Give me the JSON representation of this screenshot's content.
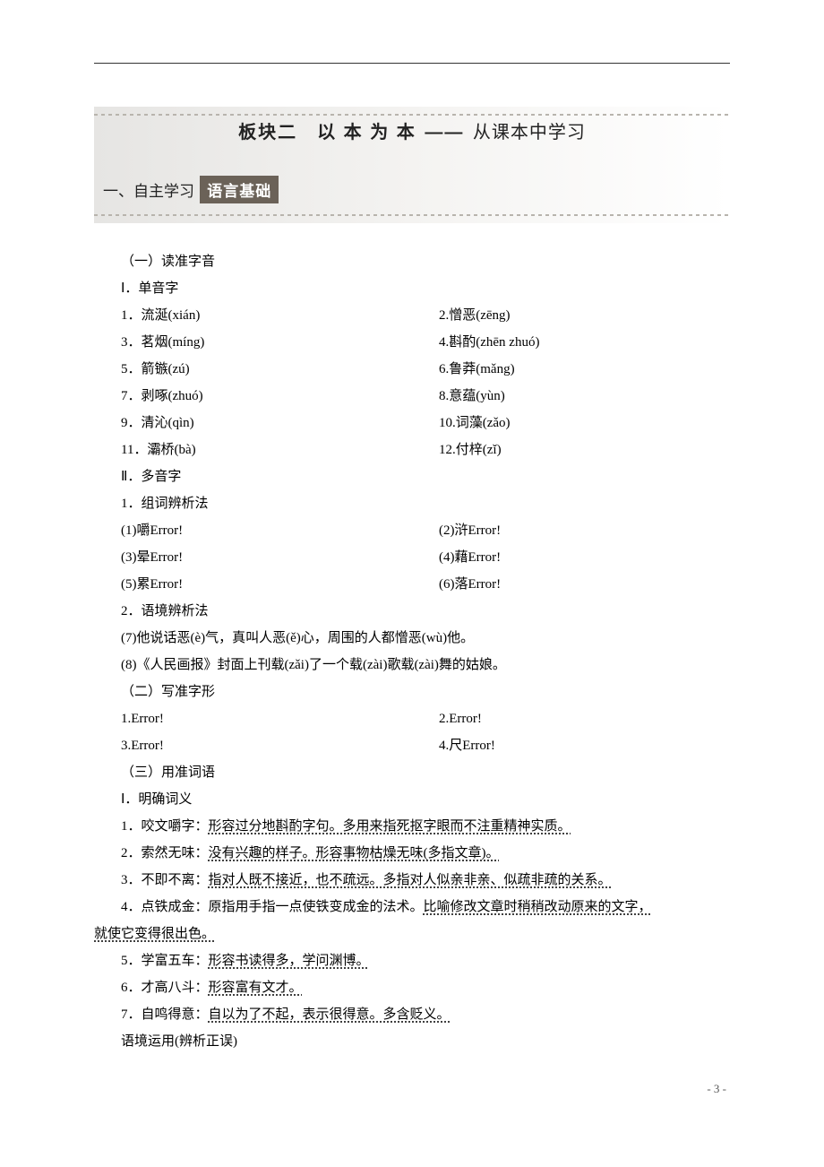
{
  "banner": {
    "title_main": "板块二　以 本 为 本",
    "title_sep": "——",
    "title_tail": "从课本中学习",
    "sub_prefix": "一、自主学习",
    "sub_tag": "语言基础"
  },
  "sec1": {
    "h": "（一）读准字音",
    "s1": "Ⅰ．单音字",
    "mono": [
      [
        "1．流涎(xián)",
        "2.憎恶(zēng)"
      ],
      [
        "3．茗烟(míng)",
        "4.斟酌(zhēn zhuó)"
      ],
      [
        "5．箭镞(zú)",
        "6.鲁莽(mǎng)"
      ],
      [
        "7．剥啄(zhuó)",
        "8.意蕴(yùn)"
      ],
      [
        "9．清沁(qìn)",
        "10.词藻(zǎo)"
      ],
      [
        "11．灞桥(bà)",
        "12.付梓(zǐ)"
      ]
    ],
    "s2": "Ⅱ．多音字",
    "s2_1": "1．组词辨析法",
    "poly": [
      [
        "(1)嚼",
        "(2)浒"
      ],
      [
        "(3)晕",
        "(4)藉"
      ],
      [
        "(5)累",
        "(6)落"
      ]
    ],
    "s2_2": "2．语境辨析法",
    "ctx7": "(7)他说话恶(è)气，真叫人恶(ě)心，周围的人都憎恶(wù)他。",
    "ctx8": "(8)《人民画报》封面上刊载(zǎi)了一个载(zài)歌载(zài)舞的姑娘。"
  },
  "sec2": {
    "h": "（二）写准字形",
    "rows": [
      [
        "1.",
        "2."
      ],
      [
        "3.",
        "4.尺"
      ]
    ]
  },
  "sec3": {
    "h": "（三）用准词语",
    "s1": "Ⅰ．明确词义",
    "defs": [
      {
        "n": "1．咬文嚼字：",
        "d": "形容过分地斟酌字句。多用来指死抠字眼而不注重精神实质。"
      },
      {
        "n": "2．索然无味：",
        "d": "没有兴趣的样子。形容事物枯燥无味(多指文章)。"
      },
      {
        "n": "3．不即不离：",
        "d": "指对人既不接近，也不疏远。多指对人似亲非亲、似疏非疏的关系。"
      },
      {
        "n": "4．点铁成金：原指用手指一点使铁变成金的法术。",
        "d": "比喻修改文章时稍稍改动原来的文字，"
      },
      {
        "tail": "就使它变得很出色。"
      },
      {
        "n": "5．学富五车：",
        "d": "形容书读得多，学问渊博。"
      },
      {
        "n": "6．才高八斗：",
        "d": "形容富有文才。"
      },
      {
        "n": "7．自鸣得意：",
        "d": "自以为了不起，表示很得意。多含贬义。"
      }
    ],
    "tail": "语境运用(辨析正误)"
  },
  "error_label": "Error!",
  "page_number": "- 3 -"
}
